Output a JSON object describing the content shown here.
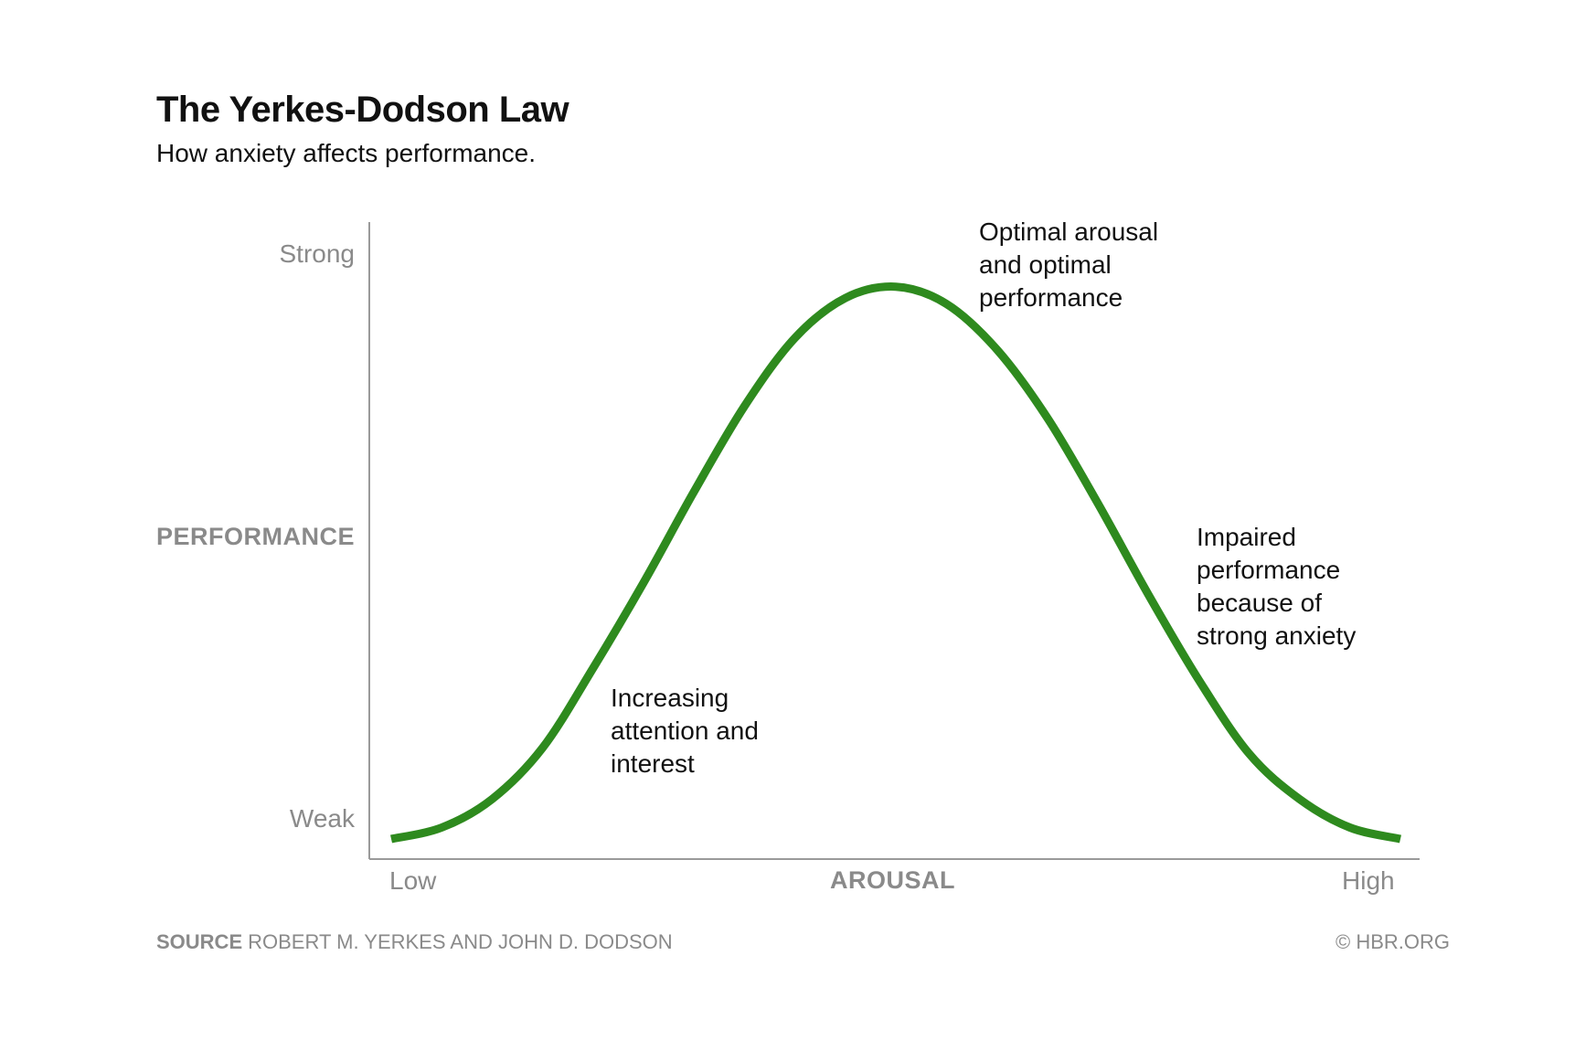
{
  "title": "The Yerkes-Dodson Law",
  "subtitle": "How anxiety affects performance.",
  "chart_data": {
    "type": "line",
    "title": "The Yerkes-Dodson Law",
    "subtitle": "How anxiety affects performance.",
    "xlabel": "AROUSAL",
    "ylabel": "PERFORMANCE",
    "x_tick_labels": [
      "Low",
      "High"
    ],
    "y_tick_labels": [
      "Weak",
      "Strong"
    ],
    "xlim": [
      0,
      1
    ],
    "ylim": [
      0,
      1
    ],
    "grid": false,
    "series_color": "#2e8a1e",
    "series": [
      {
        "x": [
          0.0,
          0.05,
          0.1,
          0.15,
          0.2,
          0.25,
          0.3,
          0.35,
          0.4,
          0.45,
          0.5,
          0.55,
          0.6,
          0.65,
          0.7,
          0.75,
          0.8,
          0.85,
          0.9,
          0.95,
          1.0
        ],
        "values": [
          0.0,
          0.02,
          0.07,
          0.16,
          0.3,
          0.45,
          0.61,
          0.76,
          0.88,
          0.95,
          0.97,
          0.94,
          0.86,
          0.74,
          0.59,
          0.43,
          0.28,
          0.15,
          0.07,
          0.02,
          0.0
        ]
      }
    ],
    "annotations": [
      {
        "text": "Optimal arousal\nand optimal\nperformance"
      },
      {
        "text": "Increasing\nattention and\ninterest"
      },
      {
        "text": "Impaired\nperformance\nbecause of\nstrong anxiety"
      }
    ]
  },
  "footer": {
    "source_label": "SOURCE",
    "source_text": "ROBERT M. YERKES AND JOHN D. DODSON",
    "copyright": "© HBR.ORG"
  }
}
